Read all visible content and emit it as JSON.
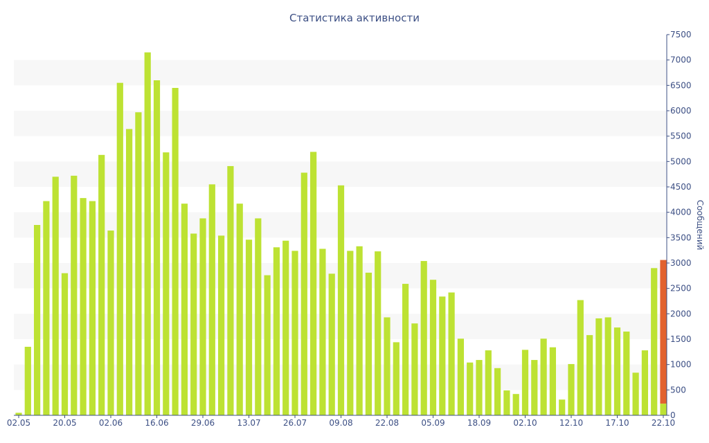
{
  "chart_data": {
    "type": "bar",
    "title": "Статистика активности",
    "xlabel": "",
    "ylabel": "Сообщений",
    "ylim": [
      0,
      7500
    ],
    "y_axis_side": "right",
    "y_ticks": [
      0,
      500,
      1000,
      1500,
      2000,
      2500,
      3000,
      3500,
      4000,
      4500,
      5000,
      5500,
      6000,
      6500,
      7000,
      7500
    ],
    "x_ticks": [
      {
        "label": "02.05",
        "index": 0
      },
      {
        "label": "20.05",
        "index": 5
      },
      {
        "label": "02.06",
        "index": 10
      },
      {
        "label": "16.06",
        "index": 15
      },
      {
        "label": "29.06",
        "index": 20
      },
      {
        "label": "13.07",
        "index": 25
      },
      {
        "label": "26.07",
        "index": 30
      },
      {
        "label": "09.08",
        "index": 35
      },
      {
        "label": "22.08",
        "index": 40
      },
      {
        "label": "05.09",
        "index": 45
      },
      {
        "label": "18.09",
        "index": 50
      },
      {
        "label": "02.10",
        "index": 55
      },
      {
        "label": "12.10",
        "index": 60
      },
      {
        "label": "17.10",
        "index": 65
      },
      {
        "label": "22.10",
        "index": 70
      }
    ],
    "grid": "horizontal alternating bands",
    "colors": {
      "bar": "#bde233",
      "highlight": "#e2622e",
      "text": "#3c4f84",
      "band": "#f7f7f7"
    },
    "series": [
      {
        "values": [
          50,
          1350,
          3750,
          4220,
          4700,
          2800,
          4720,
          4280,
          4220,
          5130,
          3640,
          6550,
          5640,
          5970,
          7150,
          6600,
          5180,
          6450,
          4170,
          3580,
          3880,
          4550,
          3540,
          4910,
          4170,
          3460,
          3880,
          2760,
          3310,
          3440,
          3240,
          4780,
          5190,
          3280,
          2790,
          4530,
          3240,
          3330,
          2810,
          3230,
          1930,
          1440,
          2590,
          1810,
          3040,
          2670,
          2340,
          2420,
          1510,
          1040,
          1090,
          1280,
          930,
          490,
          420,
          1290,
          1090,
          1510,
          1340,
          310,
          1010,
          2270,
          1580,
          1910,
          1930,
          1730,
          1650,
          840,
          1280,
          2900,
          230
        ]
      },
      {
        "values": [
          0,
          0,
          0,
          0,
          0,
          0,
          0,
          0,
          0,
          0,
          0,
          0,
          0,
          0,
          0,
          0,
          0,
          0,
          0,
          0,
          0,
          0,
          0,
          0,
          0,
          0,
          0,
          0,
          0,
          0,
          0,
          0,
          0,
          0,
          0,
          0,
          0,
          0,
          0,
          0,
          0,
          0,
          0,
          0,
          0,
          0,
          0,
          0,
          0,
          0,
          0,
          0,
          0,
          0,
          0,
          0,
          0,
          0,
          0,
          0,
          0,
          0,
          0,
          0,
          0,
          0,
          0,
          0,
          0,
          0,
          2830
        ]
      }
    ]
  }
}
